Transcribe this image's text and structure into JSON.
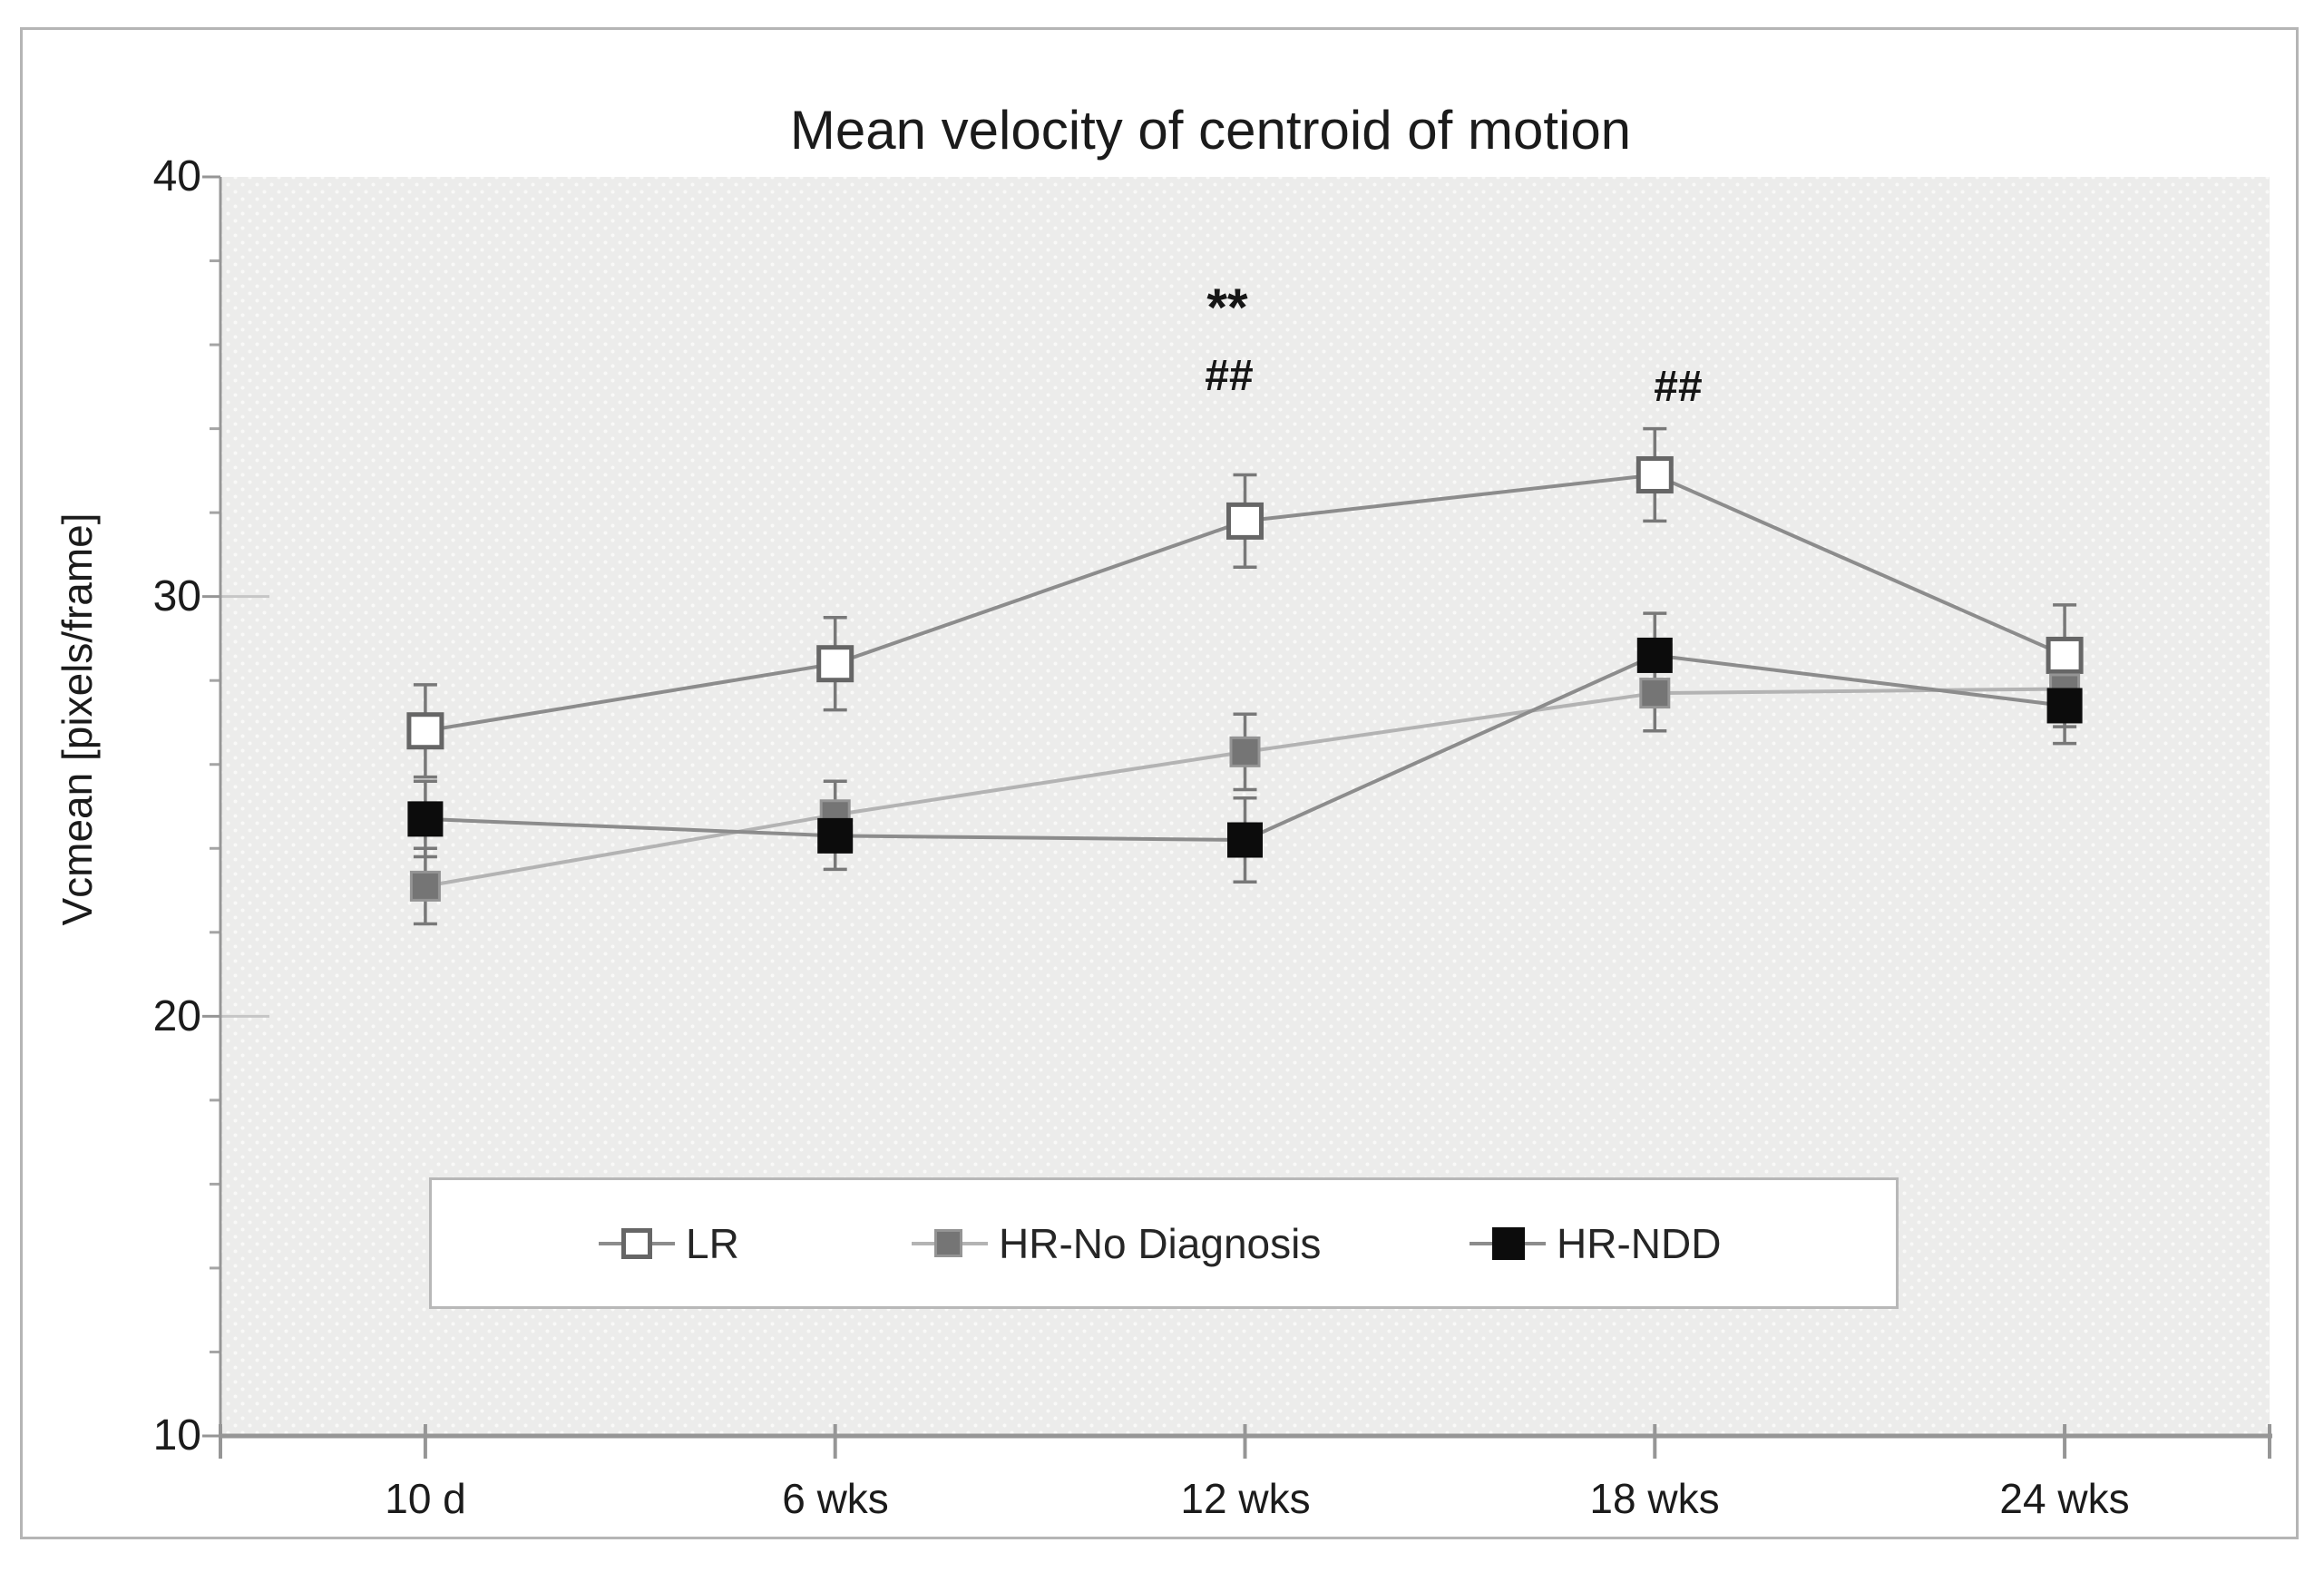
{
  "figure": {
    "background": "#ffffff",
    "border_color": "#b5b5b5"
  },
  "chart_data": {
    "type": "line",
    "title": "Mean velocity of centroid of motion",
    "xlabel": "",
    "ylabel": "Vcmean [pixels/frame]",
    "categories": [
      "10 d",
      "6 wks",
      "12 wks",
      "18 wks",
      "24 wks"
    ],
    "y_ticks": [
      40,
      30,
      20,
      10
    ],
    "ylim": [
      10,
      40
    ],
    "y_minor_tick_step": 2,
    "grid": "off",
    "plot_bg_color": "#ececeb",
    "plot_bg_dot_color": "#f9f9f8",
    "axis_color": "#969696",
    "error_bar_color": "#787878",
    "legend_position": "bottom-center-box",
    "series": [
      {
        "name": "LR",
        "marker": "open-square",
        "marker_fill": "#ffffff",
        "marker_stroke": "#666666",
        "line_color": "#8c8c8c",
        "values": [
          26.8,
          28.4,
          31.8,
          32.9,
          28.6
        ],
        "errors": [
          1.1,
          1.1,
          1.1,
          1.1,
          1.2
        ]
      },
      {
        "name": "HR-No Diagnosis",
        "marker": "filled-square",
        "marker_fill": "#757575",
        "marker_stroke": "#949494",
        "line_color": "#b3b3b3",
        "values": [
          23.1,
          24.8,
          26.3,
          27.7,
          27.8
        ],
        "errors": [
          0.9,
          0.8,
          0.9,
          0.9,
          0.9
        ]
      },
      {
        "name": "HR-NDD",
        "marker": "filled-square",
        "marker_fill": "#0c0c0c",
        "marker_stroke": "#0c0c0c",
        "line_color": "#8c8c8c",
        "values": [
          24.7,
          24.3,
          24.2,
          28.6,
          27.4
        ],
        "errors": [
          0.9,
          0.8,
          1.0,
          1.0,
          0.9
        ]
      }
    ],
    "annotations": [
      {
        "text": "**",
        "category_index": 2,
        "value": 36.8
      },
      {
        "text": "##",
        "category_index": 2,
        "value": 35.3
      },
      {
        "text": "##",
        "category_index": 3,
        "value": 34.9
      }
    ]
  }
}
